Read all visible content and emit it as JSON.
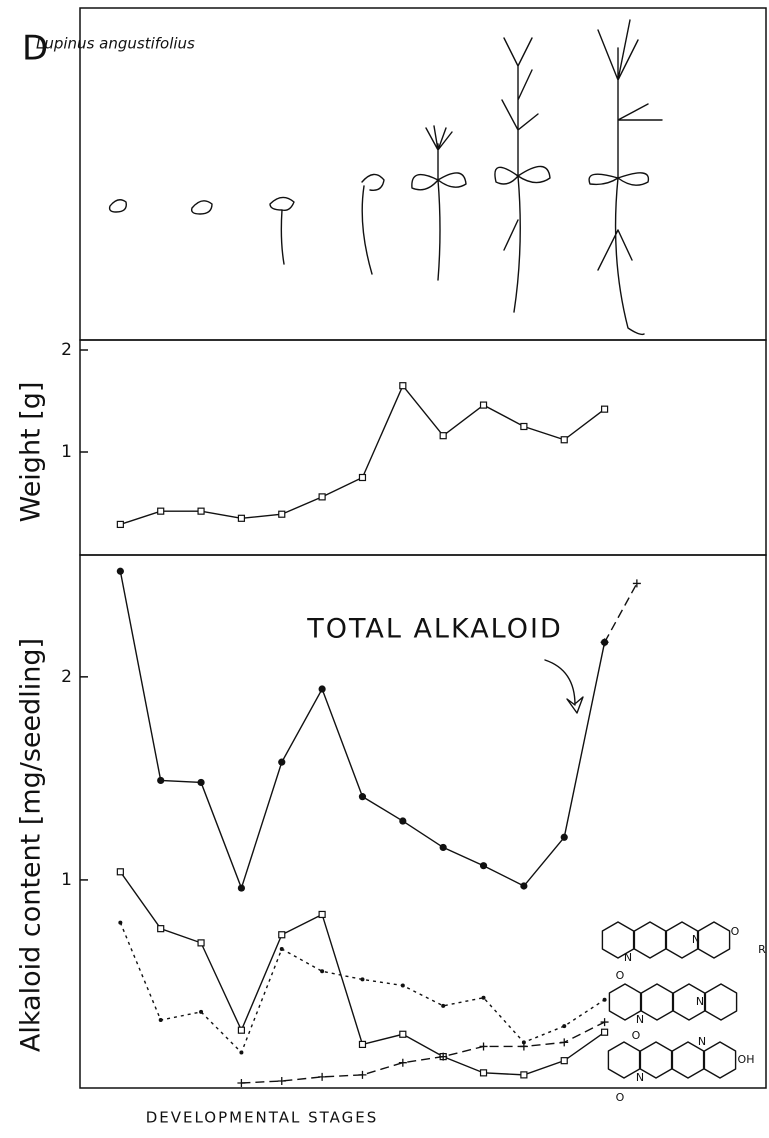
{
  "panel_label": "D",
  "species": "Lupinus angustifolius",
  "structure_atoms": [
    "N",
    "N",
    "O",
    "O",
    "R",
    "N",
    "N",
    "O",
    "N",
    "N",
    "O",
    "OH"
  ],
  "chart_data": [
    {
      "type": "line",
      "y_label": "Weight [g]",
      "xlim": [
        0,
        17
      ],
      "ylim": [
        0,
        2
      ],
      "yticks": [
        1,
        2
      ],
      "series": [
        {
          "color": "#111111",
          "dash": "solid",
          "marker": "square",
          "x": [
            1,
            2,
            3,
            4,
            5,
            6,
            7,
            8,
            9,
            10,
            11,
            12,
            13
          ],
          "values": [
            0.29,
            0.42,
            0.42,
            0.35,
            0.39,
            0.56,
            0.75,
            1.65,
            1.16,
            1.46,
            1.25,
            1.12,
            1.42
          ]
        }
      ]
    },
    {
      "type": "line",
      "y_label": "Alkaloid content [mg/seedling]",
      "x_label": "DEVELOPMENTAL STAGES",
      "annotation": "TOTAL ALKALOID",
      "xlim": [
        0,
        17
      ],
      "ylim": [
        0,
        2.6
      ],
      "yticks": [
        1,
        2
      ],
      "series": [
        {
          "color": "#111111",
          "dash": "solid",
          "marker": "circle",
          "x": [
            1,
            2,
            3,
            4,
            5,
            6,
            7,
            8,
            9,
            10,
            11,
            12,
            13
          ],
          "values": [
            2.52,
            1.49,
            1.48,
            0.96,
            1.58,
            1.94,
            1.41,
            1.29,
            1.16,
            1.07,
            0.97,
            1.21,
            2.17
          ]
        },
        {
          "color": "#111111",
          "dash": "dashed",
          "marker": "plus",
          "x": [
            13,
            13.8
          ],
          "values": [
            2.17,
            2.46
          ]
        },
        {
          "color": "#111111",
          "dash": "solid",
          "marker": "square",
          "x": [
            1,
            2,
            3,
            4,
            5,
            6,
            7,
            8,
            9,
            10,
            11,
            12,
            13
          ],
          "values": [
            1.04,
            0.76,
            0.69,
            0.26,
            0.73,
            0.83,
            0.19,
            0.24,
            0.13,
            0.05,
            0.04,
            0.11,
            0.25
          ]
        },
        {
          "color": "#111111",
          "dash": "dotted",
          "marker": "dot",
          "x": [
            1,
            2,
            3,
            4,
            5,
            6,
            7,
            8,
            9,
            10,
            11,
            12,
            13
          ],
          "values": [
            0.79,
            0.31,
            0.35,
            0.15,
            0.66,
            0.55,
            0.51,
            0.48,
            0.38,
            0.42,
            0.2,
            0.28,
            0.41
          ]
        },
        {
          "color": "#111111",
          "dash": "dashed",
          "marker": "plus",
          "x": [
            4,
            5,
            6,
            7,
            8,
            9,
            10,
            11,
            12,
            13
          ],
          "values": [
            0.0,
            0.01,
            0.03,
            0.04,
            0.1,
            0.13,
            0.18,
            0.18,
            0.2,
            0.3
          ]
        }
      ]
    }
  ]
}
